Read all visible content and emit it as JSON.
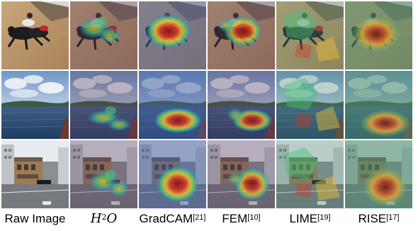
{
  "columns": [
    {
      "id": "raw",
      "label": "Raw Image",
      "ref": ""
    },
    {
      "id": "h2o",
      "label": "H",
      "sup": "2",
      "tail": "O",
      "ref": ""
    },
    {
      "id": "gradcam",
      "label": "GradCAM",
      "ref": "[21]"
    },
    {
      "id": "fem",
      "label": "FEM",
      "ref": "[10]"
    },
    {
      "id": "lime",
      "label": "LIME",
      "ref": "[19]"
    },
    {
      "id": "rise",
      "label": "RISE",
      "ref": "[17]"
    }
  ],
  "rows": [
    {
      "id": "greyhounds"
    },
    {
      "id": "seascape"
    },
    {
      "id": "street-building"
    }
  ],
  "colors": {
    "heat_hot": "#d8351f",
    "heat_warm": "#f2c230",
    "heat_mid": "#49c27a",
    "heat_cool": "#2f7fe0",
    "heat_cold": "#1b2f9a"
  }
}
